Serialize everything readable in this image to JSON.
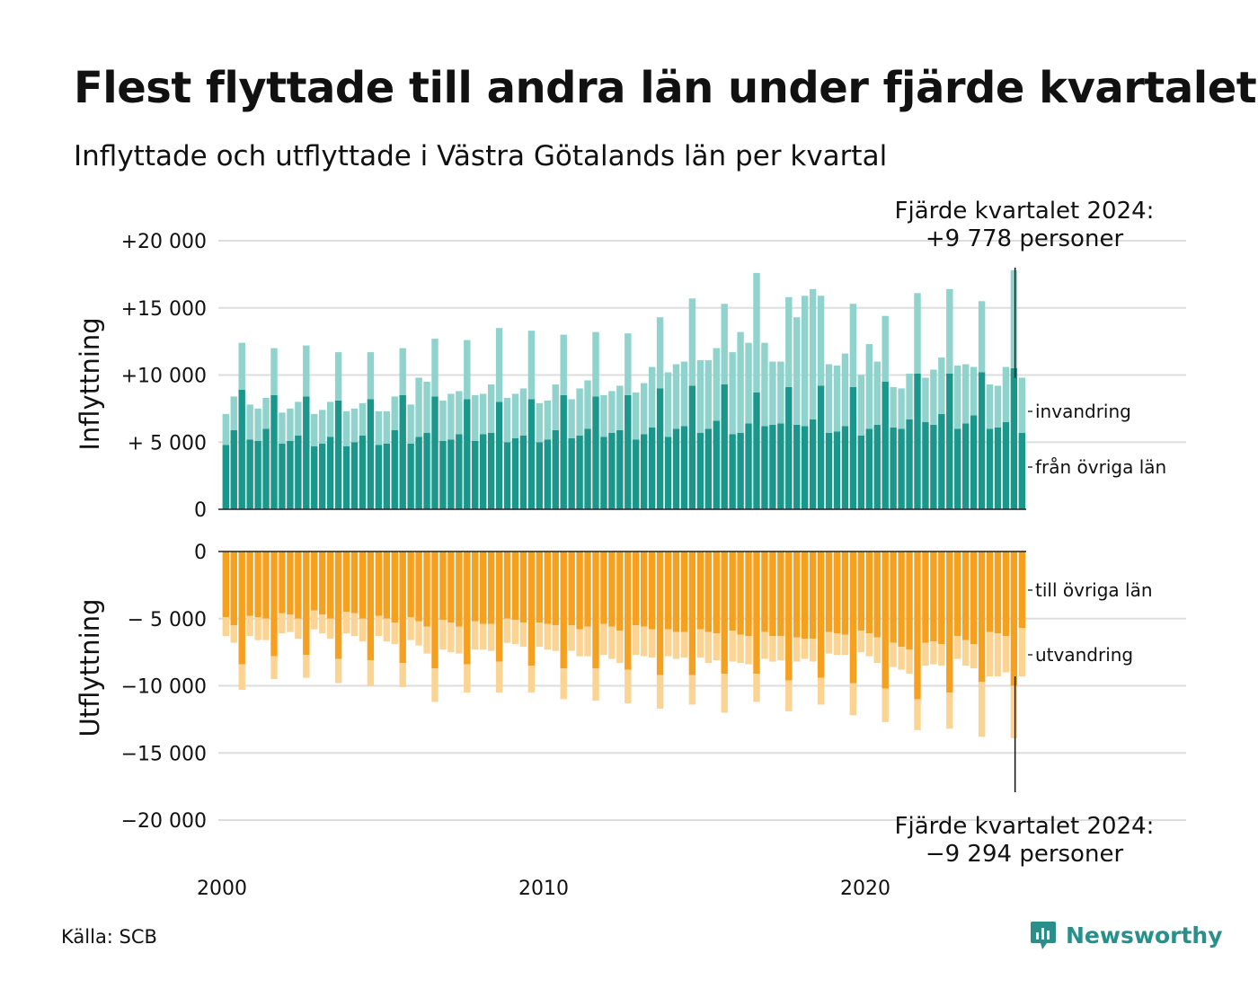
{
  "title": "Flest flyttade till andra län under fjärde kvartalet",
  "subtitle": "Inflyttade och utflyttade i Västra Götalands län per kvartal",
  "source": "Källa: SCB",
  "logo_text": "Newsworthy",
  "colors": {
    "in_domestic": "#1a968a",
    "in_immigration": "#8fd3cc",
    "out_domestic": "#f5a01e",
    "out_emigration": "#fbd493",
    "grid": "#dddddd",
    "text": "#111111"
  },
  "chart_data": {
    "type": "bar",
    "stacked": true,
    "panels": [
      {
        "ylabel": "Inflyttning",
        "ticks": [
          {
            "value": 20000,
            "label": "+20 000"
          },
          {
            "value": 15000,
            "label": "+15 000"
          },
          {
            "value": 10000,
            "label": "+10 000"
          },
          {
            "value": 5000,
            "label": "+ 5 000"
          },
          {
            "value": 0,
            "label": "0"
          }
        ],
        "ylim": [
          0,
          20000
        ],
        "legend": [
          "invandring",
          "från övriga län"
        ],
        "annotation": [
          "Fjärde kvartalet 2024:",
          "+9 778 personer"
        ]
      },
      {
        "ylabel": "Utflyttning",
        "ticks": [
          {
            "value": 0,
            "label": "0"
          },
          {
            "value": -5000,
            "label": "− 5 000"
          },
          {
            "value": -10000,
            "label": "−10 000"
          },
          {
            "value": -15000,
            "label": "−15 000"
          },
          {
            "value": -20000,
            "label": "−20 000"
          }
        ],
        "ylim": [
          -20000,
          0
        ],
        "legend": [
          "till övriga län",
          "utvandring"
        ],
        "annotation": [
          "Fjärde kvartalet 2024:",
          "−9 294 personer"
        ]
      }
    ],
    "x_ticks": [
      {
        "year": 2000,
        "label": "2000"
      },
      {
        "year": 2010,
        "label": "2010"
      },
      {
        "year": 2020,
        "label": "2020"
      }
    ],
    "x_start": 2000.0,
    "quarters_per_year": 4,
    "series": [
      {
        "name": "från övriga län",
        "panel": 0,
        "values": [
          4800,
          5900,
          8900,
          5200,
          5100,
          6000,
          8500,
          4900,
          5100,
          5500,
          8400,
          4700,
          4900,
          5400,
          8100,
          4700,
          5000,
          5500,
          8200,
          4800,
          4900,
          5900,
          8500,
          4900,
          5400,
          5700,
          8400,
          5100,
          5200,
          5600,
          8200,
          5100,
          5600,
          5700,
          8000,
          5000,
          5300,
          5500,
          8200,
          5000,
          5200,
          5900,
          8500,
          5300,
          5500,
          6000,
          8400,
          5400,
          5700,
          5900,
          8500,
          5200,
          5600,
          6100,
          9000,
          5400,
          6000,
          6200,
          9200,
          5700,
          6000,
          6600,
          9300,
          5600,
          5700,
          6400,
          8700,
          6200,
          6300,
          6400,
          9100,
          6300,
          6200,
          6700,
          9200,
          5700,
          5800,
          6200,
          9100,
          5500,
          6000,
          6300,
          9500,
          6100,
          6000,
          6700,
          10100,
          6500,
          6300,
          7100,
          10100,
          6000,
          6400,
          7000,
          10200,
          6000,
          6100,
          6500,
          10500,
          5700
        ]
      },
      {
        "name": "invandring",
        "panel": 0,
        "values": [
          2300,
          2500,
          3500,
          2600,
          2400,
          2300,
          3500,
          2300,
          2400,
          2500,
          3800,
          2400,
          2500,
          2600,
          3600,
          2600,
          2500,
          2400,
          3500,
          2500,
          2400,
          2500,
          3500,
          2900,
          4400,
          3800,
          4300,
          3000,
          3400,
          3200,
          4400,
          3400,
          3000,
          3600,
          5500,
          3300,
          3300,
          3500,
          5100,
          2900,
          2900,
          3400,
          4500,
          2900,
          3500,
          3600,
          4800,
          3100,
          3100,
          3300,
          4600,
          3500,
          3800,
          4500,
          5300,
          4800,
          4800,
          4800,
          6500,
          5400,
          5100,
          5400,
          6000,
          6100,
          7500,
          6000,
          8900,
          6200,
          4700,
          4600,
          6700,
          8000,
          9700,
          9700,
          6700,
          5100,
          4900,
          5400,
          6200,
          4500,
          6300,
          4700,
          4900,
          3000,
          3000,
          3400,
          6000,
          3300,
          4100,
          4200,
          6300,
          4700,
          4400,
          3600,
          5300,
          3300,
          3100,
          4100,
          7300,
          4100
        ]
      },
      {
        "name": "till övriga län",
        "panel": 1,
        "values": [
          4900,
          5500,
          8400,
          4800,
          4900,
          5000,
          7800,
          4600,
          4700,
          5000,
          7700,
          4400,
          4700,
          5000,
          8000,
          4500,
          4600,
          5000,
          8100,
          4800,
          5000,
          5300,
          8300,
          4900,
          5200,
          5600,
          8700,
          5100,
          5300,
          5600,
          8400,
          5200,
          5400,
          5400,
          8200,
          5000,
          5100,
          5300,
          8500,
          5300,
          5400,
          5500,
          8700,
          5500,
          5800,
          5600,
          8700,
          5400,
          5600,
          5900,
          8800,
          5500,
          5600,
          5800,
          9200,
          5800,
          6000,
          6000,
          9200,
          5800,
          6000,
          6100,
          9100,
          5900,
          6200,
          6300,
          9100,
          6000,
          6300,
          6300,
          9600,
          6400,
          6500,
          6500,
          9400,
          6000,
          6100,
          6200,
          9800,
          5900,
          6100,
          6400,
          10200,
          6800,
          7100,
          7300,
          11000,
          6800,
          6700,
          6900,
          10500,
          6300,
          6600,
          6900,
          9700,
          6000,
          6100,
          6300,
          10000,
          5700
        ]
      },
      {
        "name": "utvandring",
        "panel": 1,
        "values": [
          1400,
          1300,
          1900,
          1500,
          1700,
          1600,
          1700,
          1500,
          1300,
          1500,
          1700,
          1400,
          1400,
          1500,
          1800,
          1600,
          1700,
          1700,
          1900,
          1500,
          1700,
          1600,
          1800,
          1700,
          1800,
          2000,
          2500,
          2200,
          2200,
          2000,
          2100,
          2100,
          1900,
          2000,
          2300,
          1800,
          1800,
          1800,
          2000,
          1800,
          1900,
          1900,
          2300,
          1900,
          2000,
          2200,
          2400,
          2300,
          2400,
          2400,
          2500,
          2200,
          2200,
          2100,
          2500,
          2000,
          2000,
          1900,
          2200,
          2100,
          2300,
          2000,
          2900,
          2300,
          2100,
          2100,
          2100,
          2000,
          1900,
          1800,
          2300,
          1800,
          1500,
          1700,
          2000,
          1600,
          1600,
          1500,
          2400,
          1600,
          1700,
          1900,
          2500,
          1800,
          1700,
          1800,
          2300,
          1700,
          1700,
          1600,
          2700,
          1700,
          1900,
          1800,
          4100,
          3300,
          3200,
          2700,
          3900,
          3600
        ]
      }
    ]
  }
}
